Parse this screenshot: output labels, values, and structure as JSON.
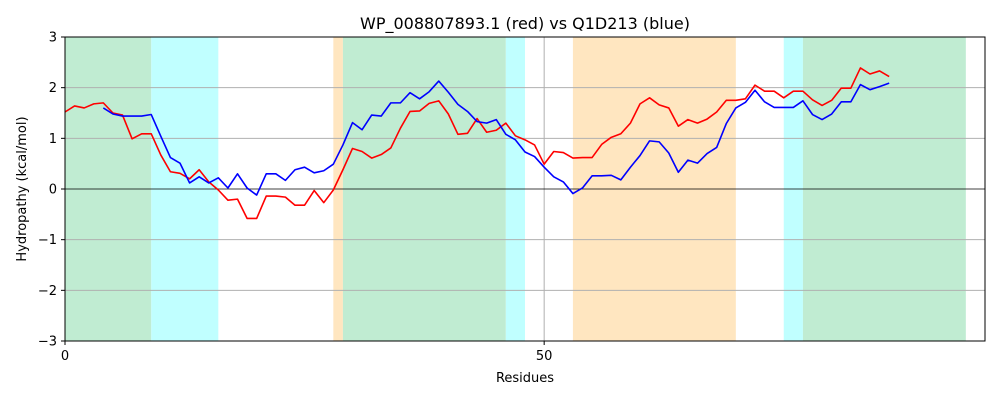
{
  "chart_data": {
    "type": "line",
    "title": "WP_008807893.1 (red) vs Q1D213 (blue)",
    "xlabel": "Residues",
    "ylabel": "Hydropathy (kcal/mol)",
    "xlim": [
      0,
      96
    ],
    "ylim": [
      -3,
      3
    ],
    "x_ticks": [
      0,
      50
    ],
    "y_ticks": [
      -3,
      -2,
      -1,
      0,
      1,
      2,
      3
    ],
    "grid": "y-major plus x=50",
    "zero_line": true,
    "colors": {
      "red_series": "#ff0000",
      "blue_series": "#0000ff",
      "region_green": "#c0ecd2",
      "region_cyan": "#c0ffff",
      "region_orange": "#ffe6c0",
      "grid": "#b0b0b0"
    },
    "regions": [
      {
        "start": 0,
        "end": 9,
        "color": "green"
      },
      {
        "start": 9,
        "end": 16,
        "color": "cyan"
      },
      {
        "start": 28,
        "end": 29,
        "color": "orange"
      },
      {
        "start": 29,
        "end": 46,
        "color": "green"
      },
      {
        "start": 46,
        "end": 48,
        "color": "cyan"
      },
      {
        "start": 53,
        "end": 70,
        "color": "orange"
      },
      {
        "start": 75,
        "end": 77,
        "color": "cyan"
      },
      {
        "start": 77,
        "end": 94,
        "color": "green"
      }
    ],
    "series": [
      {
        "color": "red",
        "x_start": 0,
        "values": [
          1.52,
          1.64,
          1.6,
          1.68,
          1.7,
          1.5,
          1.46,
          0.99,
          1.09,
          1.09,
          0.67,
          0.34,
          0.31,
          0.2,
          0.38,
          0.14,
          -0.02,
          -0.22,
          -0.2,
          -0.58,
          -0.58,
          -0.14,
          -0.14,
          -0.16,
          -0.32,
          -0.32,
          -0.03,
          -0.27,
          -0.02,
          0.38,
          0.8,
          0.74,
          0.61,
          0.68,
          0.81,
          1.2,
          1.53,
          1.54,
          1.69,
          1.74,
          1.48,
          1.08,
          1.1,
          1.39,
          1.12,
          1.16,
          1.3,
          1.05,
          0.97,
          0.87,
          0.49,
          0.74,
          0.72,
          0.61,
          0.62,
          0.62,
          0.88,
          1.02,
          1.09,
          1.3,
          1.68,
          1.8,
          1.66,
          1.6,
          1.24,
          1.37,
          1.3,
          1.38,
          1.52,
          1.75,
          1.75,
          1.78,
          2.05,
          1.93,
          1.93,
          1.8,
          1.93,
          1.93,
          1.76,
          1.65,
          1.75,
          1.99,
          1.99,
          2.39,
          2.27,
          2.33,
          2.22
        ]
      },
      {
        "color": "blue",
        "x_start": 4,
        "values": [
          1.6,
          1.48,
          1.44,
          1.44,
          1.44,
          1.47,
          1.04,
          0.62,
          0.51,
          0.12,
          0.24,
          0.12,
          0.22,
          0.02,
          0.3,
          0.02,
          -0.12,
          0.3,
          0.3,
          0.17,
          0.38,
          0.43,
          0.32,
          0.36,
          0.49,
          0.87,
          1.31,
          1.17,
          1.46,
          1.44,
          1.7,
          1.7,
          1.9,
          1.78,
          1.92,
          2.13,
          1.91,
          1.67,
          1.53,
          1.33,
          1.3,
          1.37,
          1.08,
          0.97,
          0.73,
          0.64,
          0.43,
          0.24,
          0.14,
          -0.09,
          0.02,
          0.26,
          0.26,
          0.27,
          0.18,
          0.43,
          0.66,
          0.95,
          0.93,
          0.71,
          0.33,
          0.57,
          0.51,
          0.7,
          0.82,
          1.29,
          1.6,
          1.71,
          1.95,
          1.72,
          1.61,
          1.61,
          1.61,
          1.74,
          1.47,
          1.37,
          1.48,
          1.72,
          1.72,
          2.06,
          1.96,
          2.02,
          2.09
        ]
      }
    ]
  }
}
